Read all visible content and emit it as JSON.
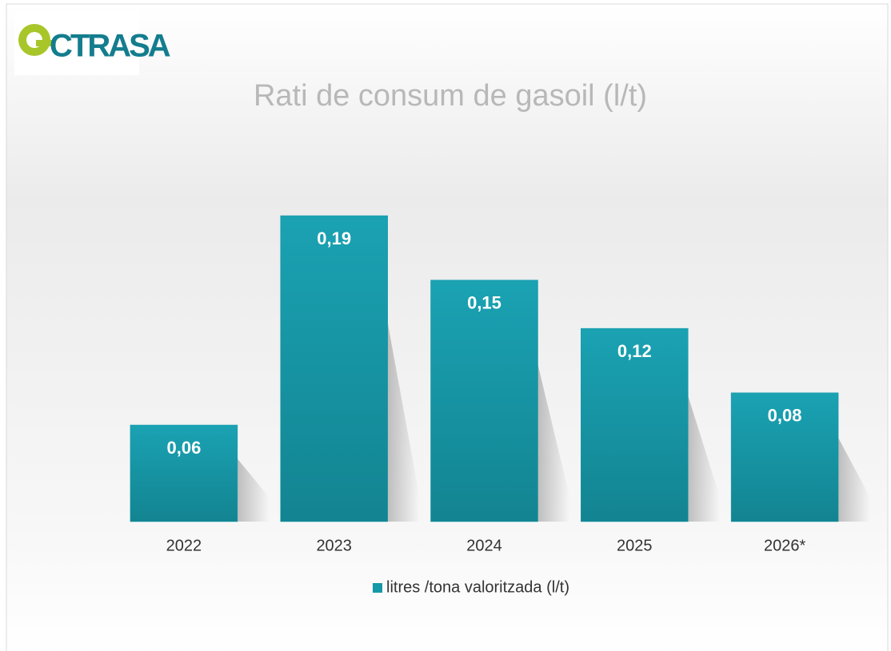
{
  "logo": "CTRASA",
  "chart_data": {
    "type": "bar",
    "title": "Rati de consum de gasoil (l/t)",
    "categories": [
      "2022",
      "2023",
      "2024",
      "2025",
      "2026*"
    ],
    "series": [
      {
        "name": "litres /tona valoritzada (l/t)",
        "color": "#1598a8",
        "values": [
          0.06,
          0.19,
          0.15,
          0.12,
          0.08
        ],
        "value_labels": [
          "0,06",
          "0,19",
          "0,15",
          "0,12",
          "0,08"
        ]
      }
    ],
    "legend": "bottom"
  }
}
